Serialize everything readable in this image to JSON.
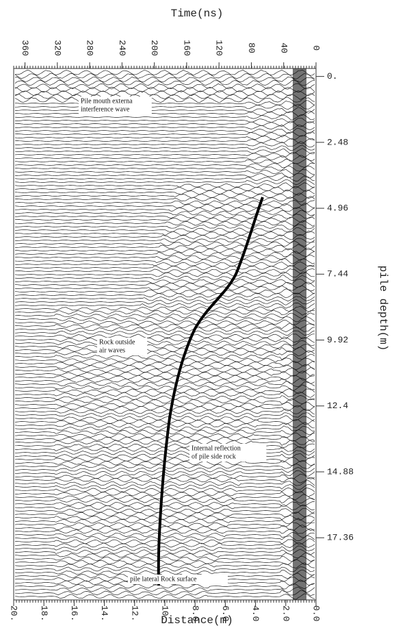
{
  "chart_data": {
    "type": "radargram",
    "x_label": "Distance(m)",
    "x2_label": "Time(ns)",
    "y_label": "pile depth(m)",
    "xlim": [
      20,
      0
    ],
    "xticks": [
      {
        "value": 20,
        "label": "20."
      },
      {
        "value": 18,
        "label": "18."
      },
      {
        "value": 16,
        "label": "16."
      },
      {
        "value": 14,
        "label": "14."
      },
      {
        "value": 12,
        "label": "12."
      },
      {
        "value": 10,
        "label": "10."
      },
      {
        "value": 8,
        "label": "8.0"
      },
      {
        "value": 6,
        "label": "6.0"
      },
      {
        "value": 4,
        "label": "4.0"
      },
      {
        "value": 2,
        "label": "2.0"
      },
      {
        "value": 0,
        "label": "0.0"
      }
    ],
    "x2lim": [
      374,
      0
    ],
    "x2ticks": [
      360,
      320,
      280,
      240,
      200,
      160,
      120,
      80,
      40,
      0
    ],
    "ylim": [
      -0.3,
      19.7
    ],
    "yticks": [
      {
        "value": 0,
        "label": "0."
      },
      2.48,
      4.96,
      7.44,
      9.92,
      12.4,
      14.88,
      17.36
    ],
    "annotations": [
      {
        "lines": [
          "Pile mouth externa",
          "interference wave"
        ]
      },
      {
        "lines": [
          "Rock outside",
          "air waves"
        ]
      },
      {
        "lines": [
          "Internal reflection",
          "of pile side rock"
        ]
      },
      {
        "lines": [
          "pile lateral Rock surface"
        ]
      }
    ]
  }
}
